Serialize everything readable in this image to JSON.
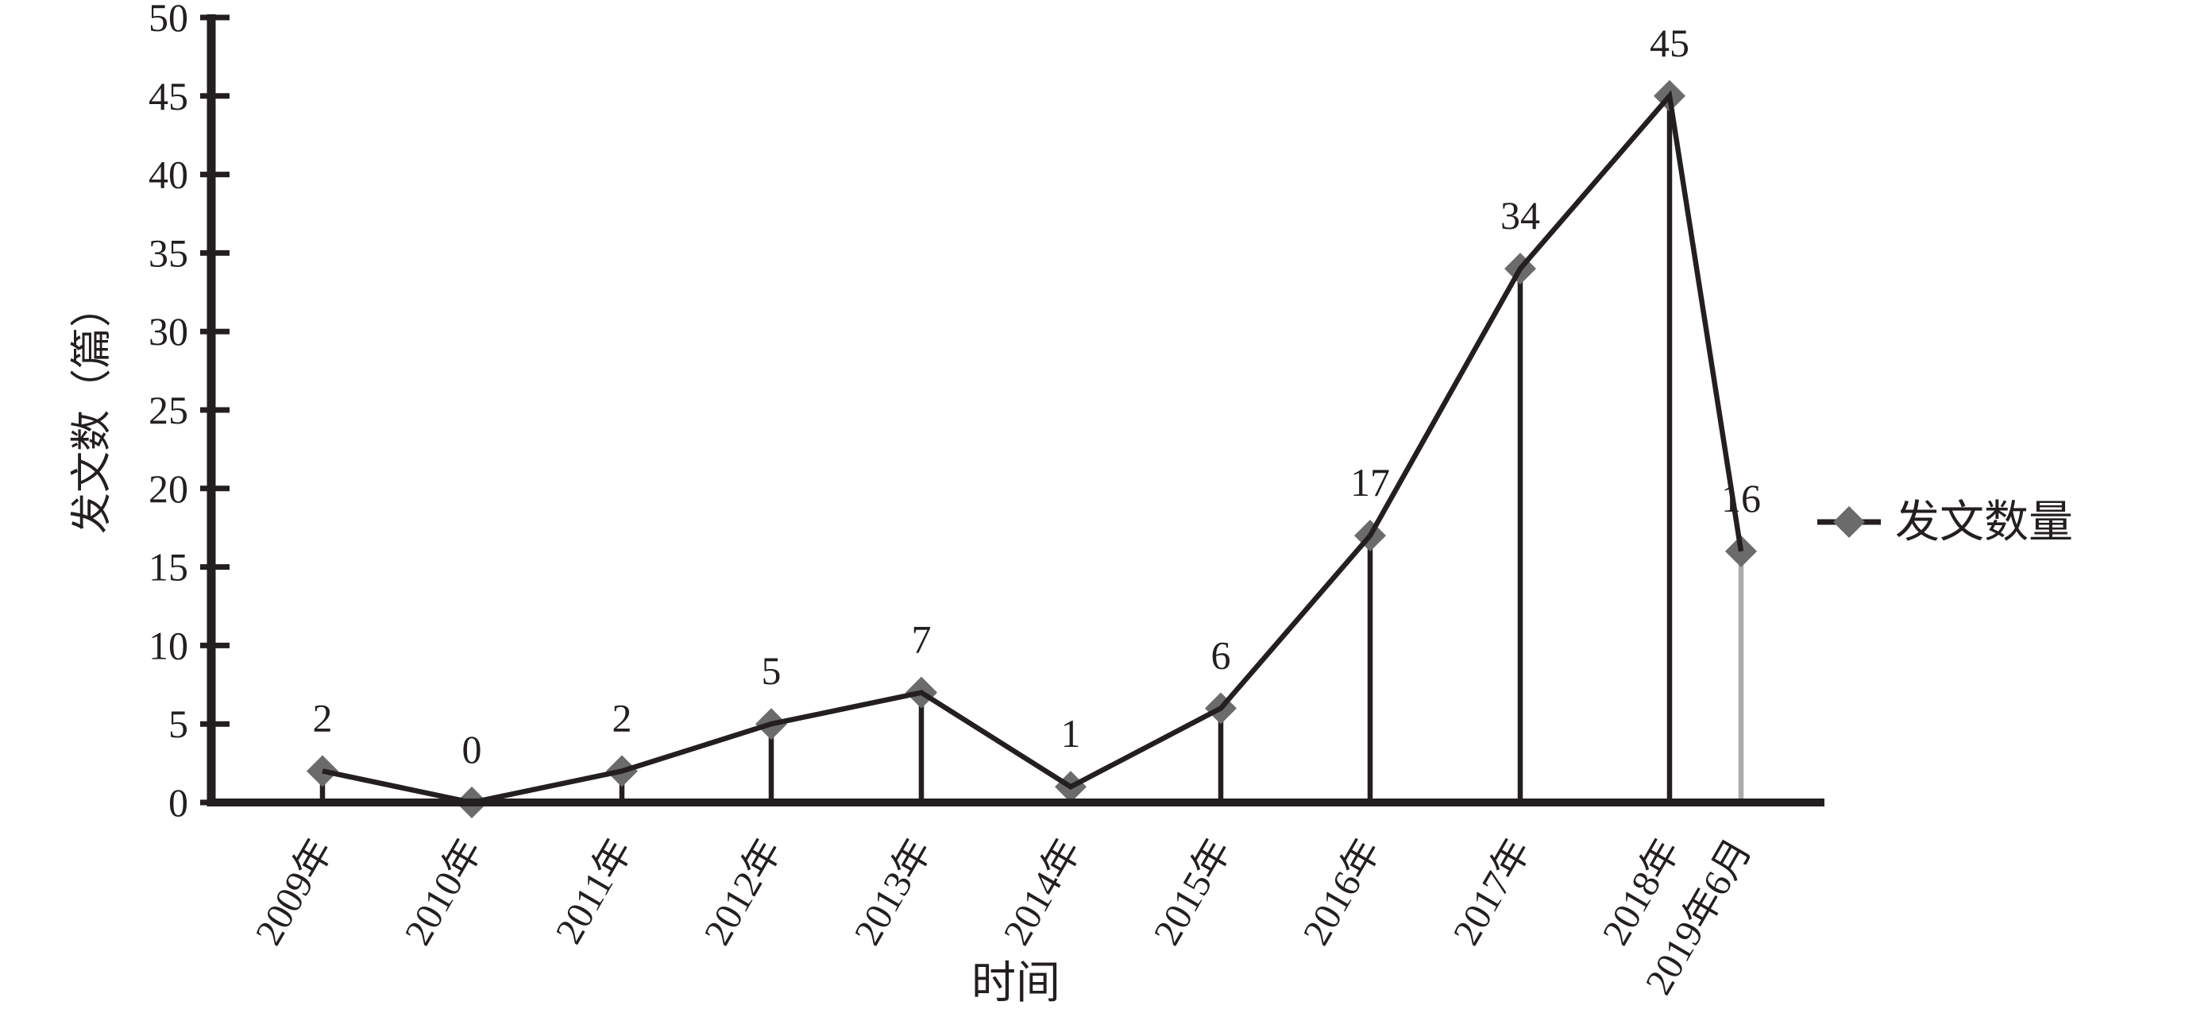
{
  "chart_data": {
    "type": "line",
    "title": "",
    "categories": [
      "2009年",
      "2010年",
      "2011年",
      "2012年",
      "2013年",
      "2014年",
      "2015年",
      "2016年",
      "2017年",
      "2018年",
      "2019年6月"
    ],
    "series": [
      {
        "name": "发文数量",
        "values": [
          2,
          0,
          2,
          5,
          7,
          1,
          6,
          17,
          34,
          45,
          16
        ]
      }
    ],
    "value_labels_shown": true,
    "xlabel": "时间",
    "ylabel": "发文数（篇）",
    "ylim": [
      0,
      50
    ],
    "ytick_step": 5,
    "ytick_labels": [
      "0",
      "5",
      "10",
      "15",
      "20",
      "25",
      "30",
      "35",
      "40",
      "45",
      "50"
    ],
    "grid": false,
    "marker": "diamond",
    "stems": true,
    "legend_position": "right-middle",
    "colors": {
      "ink": "#231f20",
      "line": "#231f20",
      "marker_fill": "#6b6b6b",
      "stem": "#231f20",
      "last_stem": "#ababab",
      "background": "#ffffff"
    }
  },
  "legend": {
    "label": "发文数量"
  },
  "axes": {
    "x_title": "时间",
    "y_title": "发文数（篇）"
  }
}
